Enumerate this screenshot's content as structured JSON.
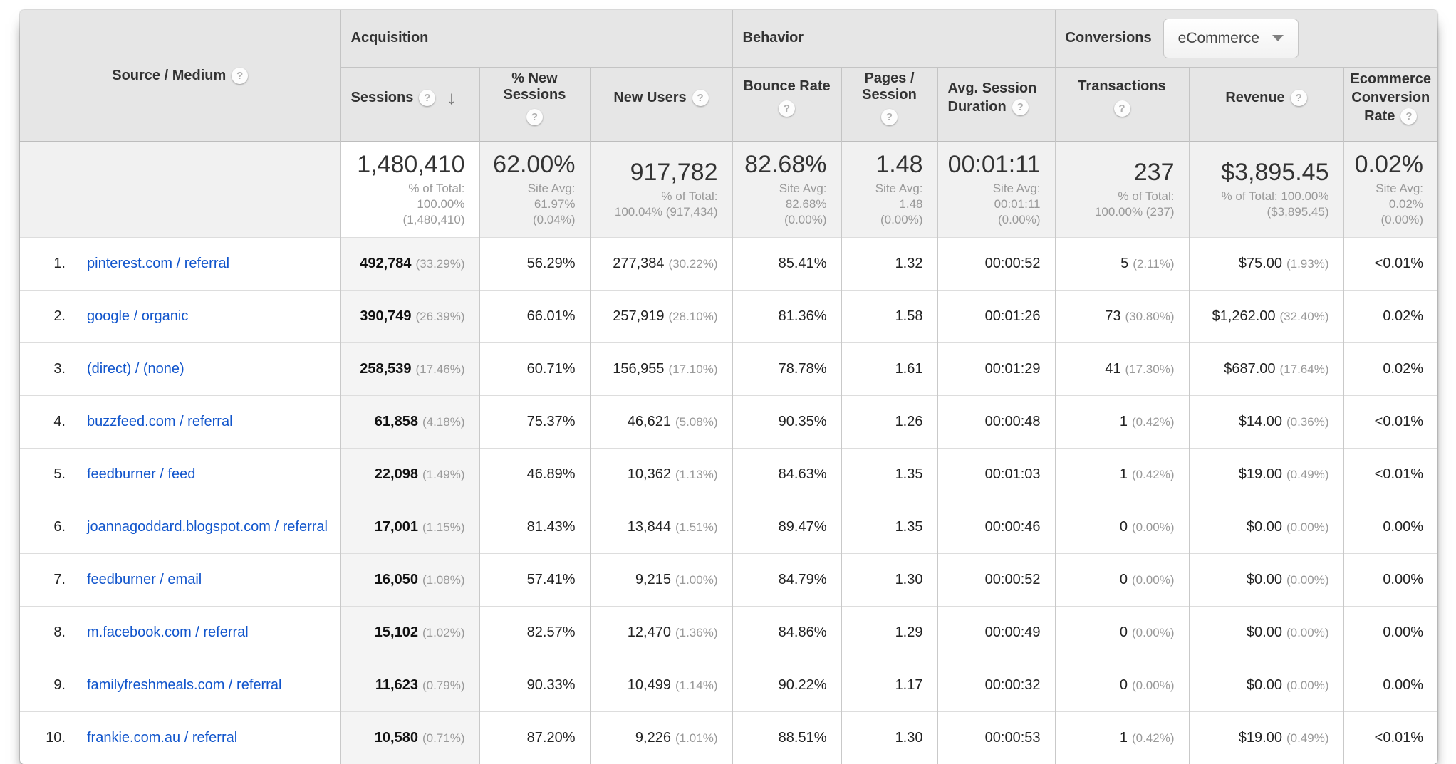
{
  "colors": {
    "link_blue": "#1155cc",
    "header_gray": "#e6e6e6",
    "sorted_column_gray": "#f4f4f4"
  },
  "table": {
    "header": {
      "dimension": "Source / Medium",
      "groups": {
        "acquisition": "Acquisition",
        "behavior": "Behavior",
        "conversions": "Conversions",
        "conversions_dropdown": "eCommerce"
      },
      "columns": {
        "sessions": "Sessions",
        "new_sessions": "% New Sessions",
        "new_users": "New Users",
        "bounce_rate": "Bounce Rate",
        "pages_session": "Pages / Session",
        "avg_duration": "Avg. Session Duration",
        "transactions": "Transactions",
        "revenue": "Revenue",
        "ecommerce_rate": "Ecommerce Conversion Rate"
      }
    },
    "totals": {
      "sessions": {
        "value": "1,480,410",
        "sub": "% of Total:\n100.00%\n(1,480,410)"
      },
      "new_sessions": {
        "value": "62.00%",
        "sub": "Site Avg:\n61.97%\n(0.04%)"
      },
      "new_users": {
        "value": "917,782",
        "sub": "% of Total:\n100.04% (917,434)"
      },
      "bounce_rate": {
        "value": "82.68%",
        "sub": "Site Avg:\n82.68%\n(0.00%)"
      },
      "pages_session": {
        "value": "1.48",
        "sub": "Site Avg:\n1.48\n(0.00%)"
      },
      "avg_duration": {
        "value": "00:01:11",
        "sub": "Site Avg:\n00:01:11\n(0.00%)"
      },
      "transactions": {
        "value": "237",
        "sub": "% of Total:\n100.00% (237)"
      },
      "revenue": {
        "value": "$3,895.45",
        "sub": "% of Total: 100.00%\n($3,895.45)"
      },
      "ecommerce_rate": {
        "value": "0.02%",
        "sub": "Site Avg:\n0.02%\n(0.00%)"
      }
    },
    "rows": [
      {
        "rank": "1.",
        "source": "pinterest.com / referral",
        "sessions": "492,784",
        "sessions_pct": "(33.29%)",
        "new_sessions": "56.29%",
        "new_users": "277,384",
        "new_users_pct": "(30.22%)",
        "bounce_rate": "85.41%",
        "pages_session": "1.32",
        "avg_duration": "00:00:52",
        "transactions": "5",
        "transactions_pct": "(2.11%)",
        "revenue": "$75.00",
        "revenue_pct": "(1.93%)",
        "ecommerce_rate": "<0.01%"
      },
      {
        "rank": "2.",
        "source": "google / organic",
        "sessions": "390,749",
        "sessions_pct": "(26.39%)",
        "new_sessions": "66.01%",
        "new_users": "257,919",
        "new_users_pct": "(28.10%)",
        "bounce_rate": "81.36%",
        "pages_session": "1.58",
        "avg_duration": "00:01:26",
        "transactions": "73",
        "transactions_pct": "(30.80%)",
        "revenue": "$1,262.00",
        "revenue_pct": "(32.40%)",
        "ecommerce_rate": "0.02%"
      },
      {
        "rank": "3.",
        "source": "(direct) / (none)",
        "sessions": "258,539",
        "sessions_pct": "(17.46%)",
        "new_sessions": "60.71%",
        "new_users": "156,955",
        "new_users_pct": "(17.10%)",
        "bounce_rate": "78.78%",
        "pages_session": "1.61",
        "avg_duration": "00:01:29",
        "transactions": "41",
        "transactions_pct": "(17.30%)",
        "revenue": "$687.00",
        "revenue_pct": "(17.64%)",
        "ecommerce_rate": "0.02%"
      },
      {
        "rank": "4.",
        "source": "buzzfeed.com / referral",
        "sessions": "61,858",
        "sessions_pct": "(4.18%)",
        "new_sessions": "75.37%",
        "new_users": "46,621",
        "new_users_pct": "(5.08%)",
        "bounce_rate": "90.35%",
        "pages_session": "1.26",
        "avg_duration": "00:00:48",
        "transactions": "1",
        "transactions_pct": "(0.42%)",
        "revenue": "$14.00",
        "revenue_pct": "(0.36%)",
        "ecommerce_rate": "<0.01%"
      },
      {
        "rank": "5.",
        "source": "feedburner / feed",
        "sessions": "22,098",
        "sessions_pct": "(1.49%)",
        "new_sessions": "46.89%",
        "new_users": "10,362",
        "new_users_pct": "(1.13%)",
        "bounce_rate": "84.63%",
        "pages_session": "1.35",
        "avg_duration": "00:01:03",
        "transactions": "1",
        "transactions_pct": "(0.42%)",
        "revenue": "$19.00",
        "revenue_pct": "(0.49%)",
        "ecommerce_rate": "<0.01%"
      },
      {
        "rank": "6.",
        "source": "joannagoddard.blogspot.com / referral",
        "sessions": "17,001",
        "sessions_pct": "(1.15%)",
        "new_sessions": "81.43%",
        "new_users": "13,844",
        "new_users_pct": "(1.51%)",
        "bounce_rate": "89.47%",
        "pages_session": "1.35",
        "avg_duration": "00:00:46",
        "transactions": "0",
        "transactions_pct": "(0.00%)",
        "revenue": "$0.00",
        "revenue_pct": "(0.00%)",
        "ecommerce_rate": "0.00%"
      },
      {
        "rank": "7.",
        "source": "feedburner / email",
        "sessions": "16,050",
        "sessions_pct": "(1.08%)",
        "new_sessions": "57.41%",
        "new_users": "9,215",
        "new_users_pct": "(1.00%)",
        "bounce_rate": "84.79%",
        "pages_session": "1.30",
        "avg_duration": "00:00:52",
        "transactions": "0",
        "transactions_pct": "(0.00%)",
        "revenue": "$0.00",
        "revenue_pct": "(0.00%)",
        "ecommerce_rate": "0.00%"
      },
      {
        "rank": "8.",
        "source": "m.facebook.com / referral",
        "sessions": "15,102",
        "sessions_pct": "(1.02%)",
        "new_sessions": "82.57%",
        "new_users": "12,470",
        "new_users_pct": "(1.36%)",
        "bounce_rate": "84.86%",
        "pages_session": "1.29",
        "avg_duration": "00:00:49",
        "transactions": "0",
        "transactions_pct": "(0.00%)",
        "revenue": "$0.00",
        "revenue_pct": "(0.00%)",
        "ecommerce_rate": "0.00%"
      },
      {
        "rank": "9.",
        "source": "familyfreshmeals.com / referral",
        "sessions": "11,623",
        "sessions_pct": "(0.79%)",
        "new_sessions": "90.33%",
        "new_users": "10,499",
        "new_users_pct": "(1.14%)",
        "bounce_rate": "90.22%",
        "pages_session": "1.17",
        "avg_duration": "00:00:32",
        "transactions": "0",
        "transactions_pct": "(0.00%)",
        "revenue": "$0.00",
        "revenue_pct": "(0.00%)",
        "ecommerce_rate": "0.00%"
      },
      {
        "rank": "10.",
        "source": "frankie.com.au / referral",
        "sessions": "10,580",
        "sessions_pct": "(0.71%)",
        "new_sessions": "87.20%",
        "new_users": "9,226",
        "new_users_pct": "(1.01%)",
        "bounce_rate": "88.51%",
        "pages_session": "1.30",
        "avg_duration": "00:00:53",
        "transactions": "1",
        "transactions_pct": "(0.42%)",
        "revenue": "$19.00",
        "revenue_pct": "(0.49%)",
        "ecommerce_rate": "<0.01%"
      }
    ]
  }
}
